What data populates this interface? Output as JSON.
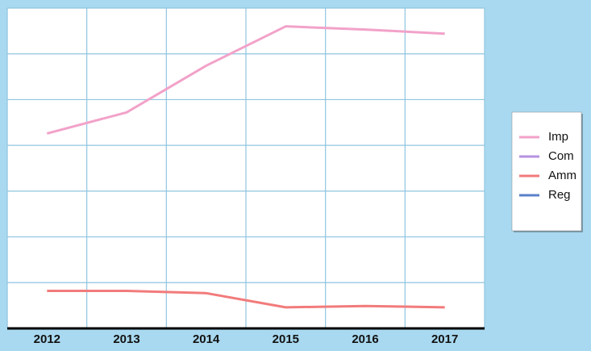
{
  "chart_data": {
    "type": "line",
    "categories": [
      "2012",
      "2013",
      "2014",
      "2015",
      "2016",
      "2017"
    ],
    "series": [
      {
        "name": "Imp",
        "color": "#f2a2c9",
        "values": [
          4.26,
          4.72,
          5.74,
          6.6,
          6.53,
          6.44
        ]
      },
      {
        "name": "Com",
        "color": "#b592e0",
        "values": [
          null,
          null,
          null,
          null,
          null,
          null
        ]
      },
      {
        "name": "Amm",
        "color": "#f27b7b",
        "values": [
          0.82,
          0.82,
          0.77,
          0.46,
          0.49,
          0.46
        ]
      },
      {
        "name": "Reg",
        "color": "#5b80c8",
        "values": [
          null,
          null,
          null,
          null,
          null,
          null
        ]
      }
    ],
    "ylim": [
      0,
      7
    ],
    "yticks": [
      0,
      1,
      2,
      3,
      4,
      5,
      6,
      7
    ],
    "grid": true
  }
}
